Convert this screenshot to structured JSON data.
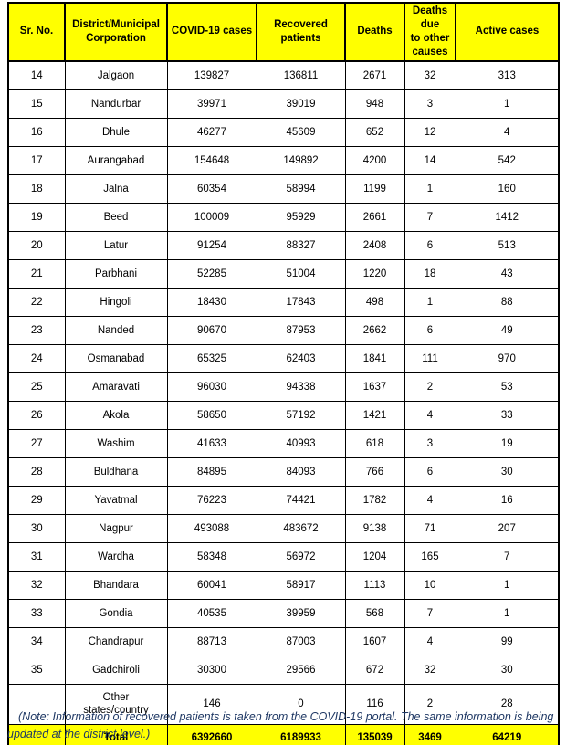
{
  "colors": {
    "header_bg": "#FFFF00",
    "total_row_bg": "#FFFF00",
    "border": "#000000",
    "note_text": "#1f3864"
  },
  "table": {
    "header_labels": [
      "Sr. No.",
      "District/Municipal\nCorporation",
      "COVID-19 cases",
      "Recovered\npatients",
      "Deaths",
      "Deaths due\nto other\ncauses",
      "Active cases"
    ],
    "rows": [
      [
        "14",
        "Jalgaon",
        "139827",
        "136811",
        "2671",
        "32",
        "313"
      ],
      [
        "15",
        "Nandurbar",
        "39971",
        "39019",
        "948",
        "3",
        "1"
      ],
      [
        "16",
        "Dhule",
        "46277",
        "45609",
        "652",
        "12",
        "4"
      ],
      [
        "17",
        "Aurangabad",
        "154648",
        "149892",
        "4200",
        "14",
        "542"
      ],
      [
        "18",
        "Jalna",
        "60354",
        "58994",
        "1199",
        "1",
        "160"
      ],
      [
        "19",
        "Beed",
        "100009",
        "95929",
        "2661",
        "7",
        "1412"
      ],
      [
        "20",
        "Latur",
        "91254",
        "88327",
        "2408",
        "6",
        "513"
      ],
      [
        "21",
        "Parbhani",
        "52285",
        "51004",
        "1220",
        "18",
        "43"
      ],
      [
        "22",
        "Hingoli",
        "18430",
        "17843",
        "498",
        "1",
        "88"
      ],
      [
        "23",
        "Nanded",
        "90670",
        "87953",
        "2662",
        "6",
        "49"
      ],
      [
        "24",
        "Osmanabad",
        "65325",
        "62403",
        "1841",
        "111",
        "970"
      ],
      [
        "25",
        "Amaravati",
        "96030",
        "94338",
        "1637",
        "2",
        "53"
      ],
      [
        "26",
        "Akola",
        "58650",
        "57192",
        "1421",
        "4",
        "33"
      ],
      [
        "27",
        "Washim",
        "41633",
        "40993",
        "618",
        "3",
        "19"
      ],
      [
        "28",
        "Buldhana",
        "84895",
        "84093",
        "766",
        "6",
        "30"
      ],
      [
        "29",
        "Yavatmal",
        "76223",
        "74421",
        "1782",
        "4",
        "16"
      ],
      [
        "30",
        "Nagpur",
        "493088",
        "483672",
        "9138",
        "71",
        "207"
      ],
      [
        "31",
        "Wardha",
        "58348",
        "56972",
        "1204",
        "165",
        "7"
      ],
      [
        "32",
        "Bhandara",
        "60041",
        "58917",
        "1113",
        "10",
        "1"
      ],
      [
        "33",
        "Gondia",
        "40535",
        "39959",
        "568",
        "7",
        "1"
      ],
      [
        "34",
        "Chandrapur",
        "88713",
        "87003",
        "1607",
        "4",
        "99"
      ],
      [
        "35",
        "Gadchiroli",
        "30300",
        "29566",
        "672",
        "32",
        "30"
      ],
      [
        "",
        "Other\nstates/country",
        "146",
        "0",
        "116",
        "2",
        "28"
      ]
    ],
    "total_row": [
      "",
      "Total",
      "6392660",
      "6189933",
      "135039",
      "3469",
      "64219"
    ]
  },
  "note": "(Note: Information of recovered patients is taken from the COVID-19 portal. The same information is being updated at the district level.)"
}
